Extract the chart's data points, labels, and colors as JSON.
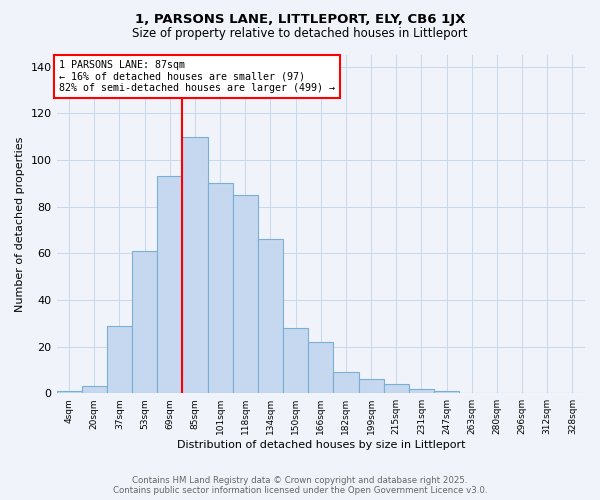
{
  "title": "1, PARSONS LANE, LITTLEPORT, ELY, CB6 1JX",
  "subtitle": "Size of property relative to detached houses in Littleport",
  "xlabel": "Distribution of detached houses by size in Littleport",
  "ylabel": "Number of detached properties",
  "footer_line1": "Contains HM Land Registry data © Crown copyright and database right 2025.",
  "footer_line2": "Contains public sector information licensed under the Open Government Licence v3.0.",
  "bar_labels": [
    "4sqm",
    "20sqm",
    "37sqm",
    "53sqm",
    "69sqm",
    "85sqm",
    "101sqm",
    "118sqm",
    "134sqm",
    "150sqm",
    "166sqm",
    "182sqm",
    "199sqm",
    "215sqm",
    "231sqm",
    "247sqm",
    "263sqm",
    "280sqm",
    "296sqm",
    "312sqm",
    "328sqm"
  ],
  "bar_values": [
    1,
    3,
    29,
    61,
    93,
    110,
    90,
    85,
    66,
    28,
    22,
    9,
    6,
    4,
    2,
    1,
    0,
    0,
    0,
    0,
    0
  ],
  "bar_color": "#c5d8f0",
  "bar_edge_color": "#7aaed4",
  "vline_color": "red",
  "vline_index": 5,
  "annotation_title": "1 PARSONS LANE: 87sqm",
  "annotation_line1": "← 16% of detached houses are smaller (97)",
  "annotation_line2": "82% of semi-detached houses are larger (499) →",
  "annotation_box_color": "white",
  "annotation_box_edge": "red",
  "ylim": [
    0,
    145
  ],
  "yticks": [
    0,
    20,
    40,
    60,
    80,
    100,
    120,
    140
  ],
  "background_color": "#f0f4fa",
  "grid_color": "#c8d8ea"
}
